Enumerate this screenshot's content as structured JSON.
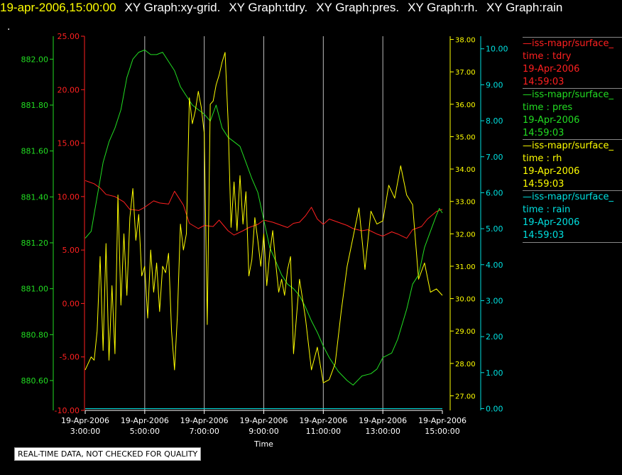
{
  "header": {
    "timestamp": "19-apr-2006,15:00:00",
    "graphs": [
      "XY Graph:xy-grid.",
      "XY Graph:tdry.",
      "XY Graph:pres.",
      "XY Graph:rh.",
      "XY Graph:rain"
    ]
  },
  "marker": ".",
  "notice": "REAL-TIME DATA, NOT CHECKED FOR QUALITY",
  "legend": [
    {
      "line": "—iss-mapr/surface_",
      "var": "time : tdry",
      "date": "19-Apr-2006",
      "time": "14:59:03",
      "color": "#ff2020"
    },
    {
      "line": "—iss-mapr/surface_",
      "var": "time : pres",
      "date": "19-Apr-2006",
      "time": "14:59:03",
      "color": "#22dd22"
    },
    {
      "line": "—iss-mapr/surface_",
      "var": "time : rh",
      "date": "19-Apr-2006",
      "time": "14:59:03",
      "color": "#ffff00"
    },
    {
      "line": "—iss-mapr/surface_",
      "var": "time : rain",
      "date": "19-Apr-2006",
      "time": "14:59:03",
      "color": "#00e0e0"
    }
  ],
  "chart_data": {
    "type": "line",
    "xlabel": "Time",
    "x_ticks": [
      {
        "date": "19-Apr-2006",
        "time": "3:00:00",
        "hour": 3
      },
      {
        "date": "19-Apr-2006",
        "time": "5:00:00",
        "hour": 5
      },
      {
        "date": "19-Apr-2006",
        "time": "7:00:00",
        "hour": 7
      },
      {
        "date": "19-Apr-2006",
        "time": "9:00:00",
        "hour": 9
      },
      {
        "date": "19-Apr-2006",
        "time": "11:00:00",
        "hour": 11
      },
      {
        "date": "19-Apr-2006",
        "time": "13:00:00",
        "hour": 13
      },
      {
        "date": "19-Apr-2006",
        "time": "15:00:00",
        "hour": 15
      }
    ],
    "xlim": [
      3,
      15
    ],
    "axes": {
      "tdry": {
        "color": "#ff2020",
        "range": [
          -10,
          25
        ],
        "ticks": [
          "-10.00",
          "-5.00",
          "0.00",
          "5.00",
          "10.00",
          "15.00",
          "20.00",
          "25.00"
        ]
      },
      "pres": {
        "color": "#22dd22",
        "range": [
          880.47,
          882.1
        ],
        "ticks": [
          "880.60",
          "880.80",
          "881.00",
          "881.20",
          "881.40",
          "881.60",
          "881.80",
          "882.00"
        ]
      },
      "rh": {
        "color": "#ffff00",
        "range": [
          26.55,
          38.1
        ],
        "ticks": [
          "27.00",
          "28.00",
          "29.00",
          "30.00",
          "31.00",
          "32.00",
          "33.00",
          "34.00",
          "35.00",
          "36.00",
          "37.00",
          "38.00"
        ]
      },
      "rain": {
        "color": "#00e0e0",
        "range": [
          -0.05,
          10.35
        ],
        "ticks": [
          "0.00",
          "1.00",
          "2.00",
          "3.00",
          "4.00",
          "5.00",
          "6.00",
          "7.00",
          "8.00",
          "9.00",
          "10.00"
        ]
      }
    },
    "series": [
      {
        "name": "time : tdry",
        "axis": "tdry",
        "color": "#ff2020",
        "x": [
          3.0,
          3.3,
          3.5,
          3.7,
          4.0,
          4.3,
          4.5,
          4.8,
          5.0,
          5.3,
          5.5,
          5.8,
          6.0,
          6.3,
          6.5,
          6.8,
          7.0,
          7.3,
          7.5,
          7.8,
          8.0,
          8.3,
          8.5,
          8.8,
          9.0,
          9.3,
          9.5,
          9.8,
          10.0,
          10.2,
          10.4,
          10.6,
          10.8,
          11.0,
          11.2,
          11.5,
          11.8,
          12.0,
          12.3,
          12.5,
          12.8,
          13.0,
          13.3,
          13.5,
          13.8,
          14.0,
          14.3,
          14.5,
          14.8,
          15.0
        ],
        "y": [
          11.5,
          11.2,
          10.8,
          10.2,
          10.0,
          9.5,
          8.8,
          8.7,
          9.0,
          9.6,
          9.4,
          9.3,
          10.5,
          9.2,
          7.5,
          7.0,
          7.3,
          7.2,
          7.8,
          6.8,
          6.4,
          6.8,
          7.1,
          7.4,
          7.8,
          7.6,
          7.4,
          7.1,
          7.5,
          7.6,
          8.2,
          9.0,
          7.9,
          7.4,
          7.9,
          7.6,
          7.3,
          7.0,
          6.8,
          6.9,
          6.5,
          6.3,
          6.7,
          6.5,
          6.1,
          6.9,
          7.2,
          7.9,
          8.6,
          8.8
        ]
      },
      {
        "name": "time : pres",
        "axis": "pres",
        "color": "#22dd22",
        "x": [
          3.0,
          3.2,
          3.4,
          3.6,
          3.8,
          4.0,
          4.2,
          4.4,
          4.6,
          4.8,
          5.0,
          5.2,
          5.4,
          5.6,
          5.8,
          6.0,
          6.2,
          6.4,
          6.6,
          6.8,
          7.0,
          7.2,
          7.4,
          7.6,
          7.8,
          8.0,
          8.2,
          8.4,
          8.6,
          8.8,
          9.0,
          9.2,
          9.4,
          9.6,
          9.8,
          10.0,
          10.2,
          10.4,
          10.6,
          10.8,
          11.0,
          11.2,
          11.5,
          11.8,
          12.0,
          12.3,
          12.6,
          12.8,
          13.0,
          13.3,
          13.5,
          13.8,
          14.0,
          14.2,
          14.4,
          14.6,
          14.8,
          14.9,
          15.0
        ],
        "y": [
          881.22,
          881.25,
          881.4,
          881.55,
          881.64,
          881.7,
          881.78,
          881.92,
          882.0,
          882.03,
          882.04,
          882.02,
          882.02,
          882.03,
          881.99,
          881.95,
          881.88,
          881.84,
          881.8,
          881.78,
          881.76,
          881.73,
          881.8,
          881.7,
          881.66,
          881.64,
          881.62,
          881.55,
          881.48,
          881.42,
          881.3,
          881.18,
          881.12,
          881.06,
          881.02,
          881.0,
          880.97,
          880.92,
          880.86,
          880.81,
          880.75,
          880.7,
          880.64,
          880.6,
          880.58,
          880.62,
          880.63,
          880.65,
          880.7,
          880.72,
          880.78,
          880.91,
          881.02,
          881.06,
          881.18,
          881.25,
          881.32,
          881.35,
          881.33
        ]
      },
      {
        "name": "time : rh",
        "axis": "rh",
        "color": "#ffff00",
        "x": [
          3.0,
          3.1,
          3.2,
          3.3,
          3.4,
          3.5,
          3.6,
          3.7,
          3.8,
          3.9,
          4.0,
          4.1,
          4.2,
          4.3,
          4.4,
          4.5,
          4.6,
          4.7,
          4.8,
          4.9,
          5.0,
          5.1,
          5.2,
          5.3,
          5.4,
          5.5,
          5.6,
          5.7,
          5.8,
          5.9,
          6.0,
          6.1,
          6.2,
          6.3,
          6.4,
          6.5,
          6.6,
          6.7,
          6.8,
          6.9,
          7.0,
          7.1,
          7.2,
          7.3,
          7.4,
          7.5,
          7.6,
          7.7,
          7.8,
          7.9,
          8.0,
          8.1,
          8.2,
          8.3,
          8.4,
          8.5,
          8.6,
          8.7,
          8.8,
          8.9,
          9.0,
          9.1,
          9.2,
          9.3,
          9.4,
          9.5,
          9.6,
          9.7,
          9.8,
          9.9,
          10.0,
          10.2,
          10.4,
          10.6,
          10.8,
          11.0,
          11.2,
          11.4,
          11.6,
          11.8,
          12.0,
          12.2,
          12.4,
          12.6,
          12.8,
          13.0,
          13.2,
          13.4,
          13.6,
          13.8,
          14.0,
          14.2,
          14.4,
          14.6,
          14.8,
          15.0
        ],
        "y": [
          27.8,
          28.0,
          28.2,
          28.1,
          29.0,
          31.3,
          28.4,
          31.7,
          28.1,
          30.4,
          28.3,
          33.2,
          29.8,
          32.0,
          30.1,
          32.5,
          33.4,
          31.8,
          32.6,
          30.7,
          31.0,
          29.4,
          31.5,
          30.2,
          31.1,
          29.6,
          31.0,
          30.8,
          31.4,
          29.0,
          27.8,
          29.5,
          32.3,
          31.5,
          32.0,
          36.2,
          35.4,
          35.8,
          36.4,
          35.9,
          35.1,
          29.2,
          36.0,
          36.1,
          36.6,
          36.9,
          37.3,
          37.6,
          35.5,
          32.2,
          33.6,
          32.1,
          33.8,
          32.3,
          33.3,
          30.7,
          31.2,
          32.5,
          31.8,
          31.0,
          32.0,
          30.4,
          31.4,
          32.1,
          31.1,
          30.2,
          30.6,
          30.1,
          30.9,
          31.3,
          28.3,
          30.6,
          29.4,
          27.8,
          28.5,
          27.4,
          27.5,
          28.0,
          29.6,
          31.0,
          31.9,
          32.8,
          30.9,
          32.7,
          32.3,
          32.4,
          33.5,
          33.1,
          34.1,
          33.2,
          32.9,
          30.6,
          31.1,
          30.2,
          30.3,
          30.1
        ]
      },
      {
        "name": "time : rain",
        "axis": "rain",
        "color": "#00e0e0",
        "x": [
          3.0,
          15.0
        ],
        "y": [
          0.0,
          0.0
        ]
      }
    ]
  }
}
